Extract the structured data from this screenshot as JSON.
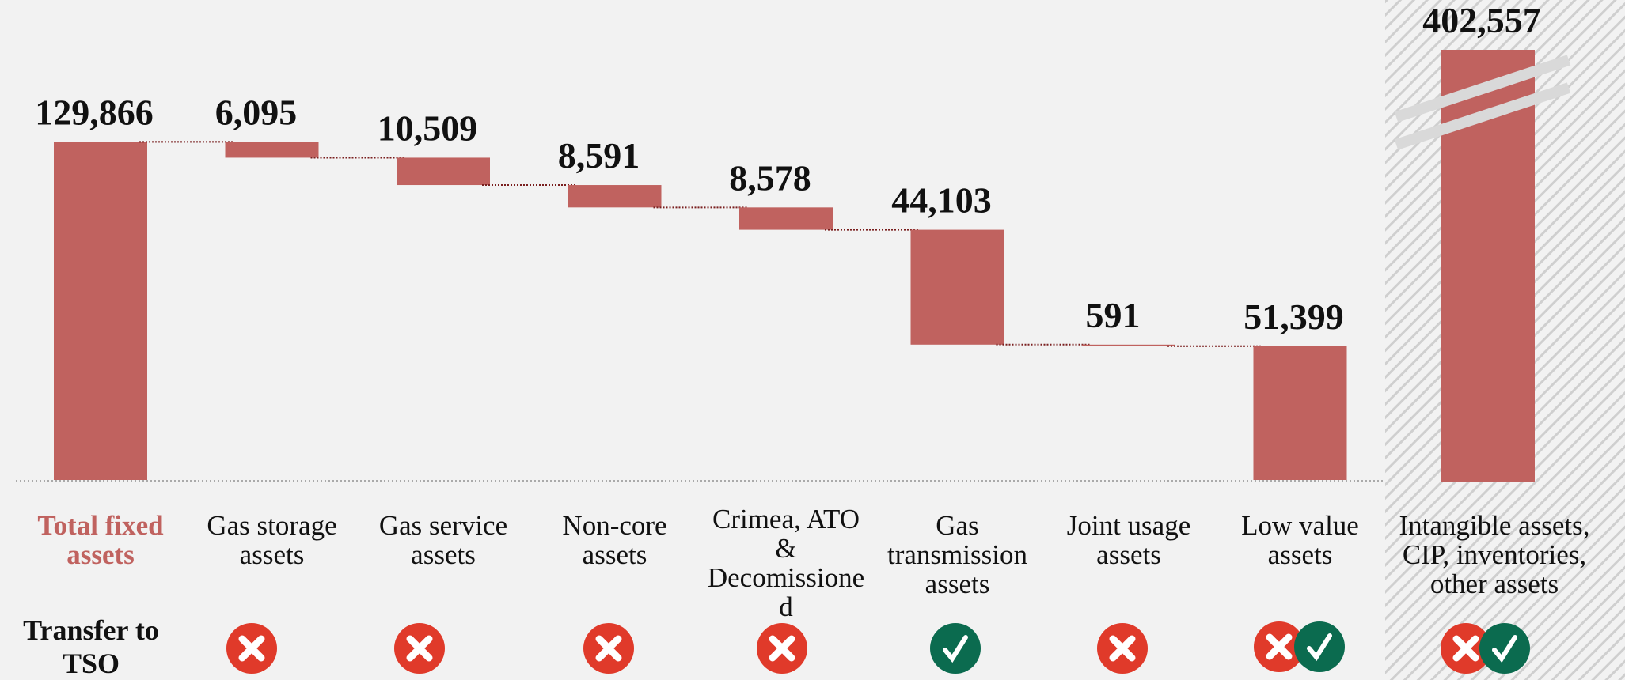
{
  "chart_data": {
    "type": "waterfall",
    "categories": [
      "Total fixed assets",
      "Gas storage assets",
      "Gas service assets",
      "Non-core assets",
      "Crimea, ATO & Decomissioned",
      "Gas transmission assets",
      "Joint usage assets",
      "Low value assets",
      "Intangible assets, CIP, inventories, other assets"
    ],
    "values": [
      129866,
      6095,
      10509,
      8591,
      8578,
      44103,
      591,
      51399,
      402557
    ],
    "value_labels": [
      "129,866",
      "6,095",
      "10,509",
      "8,591",
      "8,578",
      "44,103",
      "591",
      "51,399",
      "402,557"
    ],
    "measure": [
      "total",
      "decrease",
      "decrease",
      "decrease",
      "decrease",
      "decrease",
      "decrease",
      "total",
      "total"
    ],
    "broken": [
      false,
      false,
      false,
      false,
      false,
      false,
      false,
      false,
      true
    ],
    "color": "#c0625f",
    "ylim": [
      0,
      140000
    ]
  },
  "row_label": "Transfer to TSO"
}
